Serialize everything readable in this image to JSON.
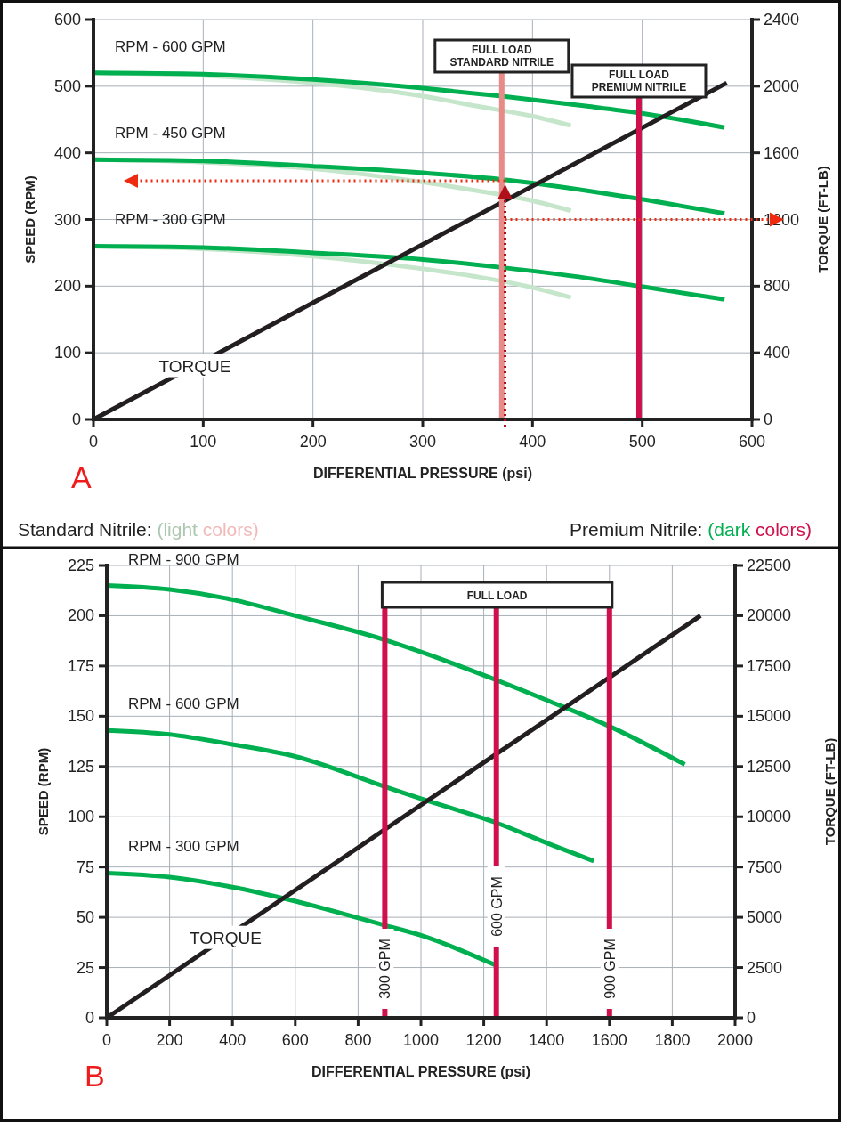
{
  "chart_data": [
    {
      "type": "line",
      "xlabel": "DIFFERENTIAL PRESSURE (psi)",
      "ylabel": "SPEED (RPM)",
      "y2label": "TORQUE (FT-LB)",
      "xlim": [
        0,
        600
      ],
      "xticks": [
        0,
        100,
        200,
        300,
        400,
        500,
        600
      ],
      "ylim": [
        0,
        600
      ],
      "yticks": [
        0,
        100,
        200,
        300,
        400,
        500,
        600
      ],
      "y2lim": [
        0,
        2400
      ],
      "y2ticks": [
        0,
        400,
        800,
        1200,
        1600,
        2000,
        2400
      ],
      "grid": true,
      "series": [
        {
          "color": "#c6e6cb",
          "x": [
            0,
            100,
            200,
            300,
            350,
            400,
            435
          ],
          "values": [
            520,
            516,
            505,
            485,
            470,
            455,
            441
          ]
        },
        {
          "color": "#c6e6cb",
          "x": [
            0,
            100,
            200,
            300,
            350,
            400,
            435
          ],
          "values": [
            390,
            386,
            376,
            356,
            343,
            328,
            313
          ]
        },
        {
          "color": "#c6e6cb",
          "x": [
            0,
            100,
            200,
            300,
            350,
            400,
            435
          ],
          "values": [
            260,
            256,
            245,
            226,
            214,
            198,
            183
          ]
        },
        {
          "name": "RPM - 600 GPM",
          "color": "#00b050",
          "x": [
            0,
            100,
            200,
            300,
            372,
            450,
            497,
            575
          ],
          "values": [
            520,
            518,
            510,
            497,
            485,
            470,
            460,
            438
          ]
        },
        {
          "name": "RPM - 450 GPM",
          "color": "#00b050",
          "x": [
            0,
            100,
            200,
            300,
            372,
            450,
            497,
            575
          ],
          "values": [
            390,
            388,
            380,
            370,
            360,
            343,
            331,
            309
          ]
        },
        {
          "name": "RPM - 300 GPM",
          "color": "#00b050",
          "x": [
            0,
            100,
            200,
            300,
            372,
            450,
            497,
            575
          ],
          "values": [
            260,
            258,
            250,
            240,
            228,
            212,
            200,
            180
          ]
        },
        {
          "name": "TORQUE",
          "color": "#231f20",
          "axis": "y2",
          "x": [
            0,
            577
          ],
          "values": [
            0,
            2020
          ]
        }
      ],
      "ref_lines": [
        {
          "axis": "x",
          "value": 372,
          "label": "FULL LOAD\nSTANDARD NITRILE",
          "color": "#e88a88"
        },
        {
          "axis": "x",
          "value": 497,
          "label": "FULL LOAD\nPREMIUM NITRILE",
          "color": "#d0104c"
        },
        {
          "axis": "x",
          "value": 375,
          "color": "#b0101a",
          "line_style": "dotted"
        },
        {
          "axis": "y",
          "value": 358,
          "color": "#ee2a10",
          "line_style": "dotted"
        },
        {
          "axis": "y2",
          "value": 1200,
          "color": "#ee2a10",
          "line_style": "dotted"
        }
      ],
      "annotations": [
        "A",
        "Standard Nitrile: (light colors)",
        "Premium Nitrile: (dark colors)"
      ]
    },
    {
      "type": "line",
      "xlabel": "DIFFERENTIAL PRESSURE (psi)",
      "ylabel": "SPEED (RPM)",
      "y2label": "TORQUE (FT-LB)",
      "xlim": [
        0,
        2000
      ],
      "xticks": [
        0,
        200,
        400,
        600,
        800,
        1000,
        1200,
        1400,
        1600,
        1800,
        2000
      ],
      "ylim": [
        0,
        225
      ],
      "yticks": [
        0,
        25,
        50,
        75,
        100,
        125,
        150,
        175,
        200,
        225
      ],
      "y2lim": [
        0,
        22500
      ],
      "y2ticks": [
        0,
        2500,
        5000,
        7500,
        10000,
        12500,
        15000,
        17500,
        20000,
        22500
      ],
      "grid": true,
      "series": [
        {
          "name": "RPM - 900 GPM",
          "color": "#00b050",
          "x": [
            0,
            200,
            400,
            600,
            885,
            1000,
            1240,
            1400,
            1600,
            1840
          ],
          "values": [
            215,
            213,
            208,
            200,
            188,
            182,
            168,
            158,
            145,
            126
          ]
        },
        {
          "name": "RPM - 600 GPM",
          "color": "#00b050",
          "x": [
            0,
            200,
            400,
            600,
            885,
            1000,
            1240,
            1400,
            1550
          ],
          "values": [
            143,
            141,
            136,
            130,
            115,
            109,
            97,
            87,
            78
          ]
        },
        {
          "name": "RPM - 300 GPM",
          "color": "#00b050",
          "x": [
            0,
            200,
            400,
            600,
            885,
            1000,
            1240
          ],
          "values": [
            72,
            70,
            65,
            58,
            46,
            41,
            26
          ]
        },
        {
          "name": "TORQUE",
          "color": "#231f20",
          "axis": "y2",
          "x": [
            0,
            1890
          ],
          "values": [
            0,
            20000
          ]
        }
      ],
      "ref_lines": [
        {
          "axis": "x",
          "value": 885,
          "label": "300 GPM",
          "color": "#d0104c"
        },
        {
          "axis": "x",
          "value": 1240,
          "label": "600 GPM",
          "color": "#d0104c"
        },
        {
          "axis": "x",
          "value": 1600,
          "label": "900 GPM",
          "color": "#d0104c"
        }
      ],
      "annotations": [
        "FULL LOAD",
        "B"
      ]
    }
  ]
}
